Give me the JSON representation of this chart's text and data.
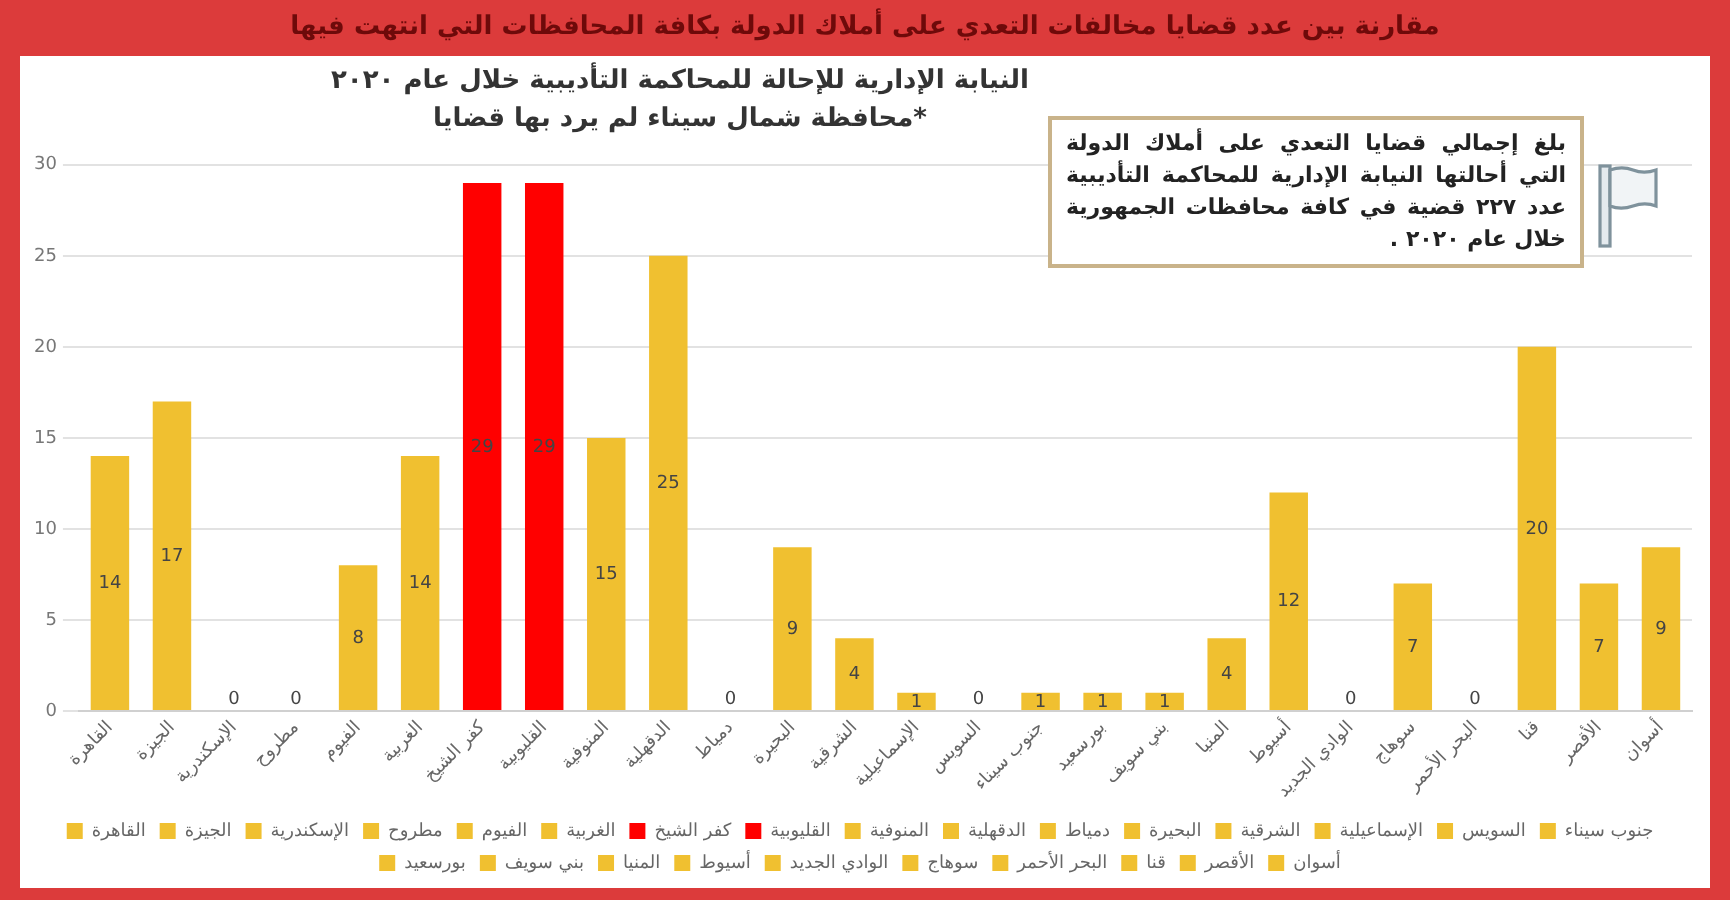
{
  "chart_data": {
    "type": "bar",
    "title": "مقارنة بين عدد قضايا مخالفات التعدي على أملاك الدولة بكافة المحافظات التي انتهت فيها",
    "subtitle": "النيابة الإدارية للإحالة للمحاكمة التأديبية خلال عام ٢٠٢٠",
    "annotations": [
      "*محافظة شمال سيناء لم يرد بها قضايا",
      "بلغ إجمالي قضايا التعدي على أملاك الدولة التي أحالتها النيابة الإدارية للمحاكمة التأديبية عدد ٢٢٧ قضية في كافة محافظات الجمهورية خلال عام ٢٠٢٠ ."
    ],
    "categories": [
      "القاهرة",
      "الجيزة",
      "الإسكندرية",
      "مطروح",
      "الفيوم",
      "الغربية",
      "كفر الشيخ",
      "القليوبية",
      "المنوفية",
      "الدقهلية",
      "دمياط",
      "البحيرة",
      "الشرقية",
      "الإسماعيلية",
      "السويس",
      "جنوب سيناء",
      "بورسعيد",
      "بني سويف",
      "المنيا",
      "أسيوط",
      "الوادي الجديد",
      "سوهاج",
      "البحر الأحمر",
      "قنا",
      "الأقصر",
      "أسوان"
    ],
    "series": [
      {
        "name": "القاهرة",
        "color": "#f0c030",
        "values": [
          14,
          null,
          null,
          null,
          null,
          null,
          null,
          null,
          null,
          null,
          null,
          null,
          null,
          null,
          null,
          null,
          null,
          null,
          null,
          null,
          null,
          null,
          null,
          null,
          null,
          null
        ]
      },
      {
        "name": "الجيزة",
        "color": "#f0c030",
        "values": [
          null,
          17,
          null,
          null,
          null,
          null,
          null,
          null,
          null,
          null,
          null,
          null,
          null,
          null,
          null,
          null,
          null,
          null,
          null,
          null,
          null,
          null,
          null,
          null,
          null,
          null
        ]
      },
      {
        "name": "الإسكندرية",
        "color": "#f0c030",
        "values": [
          null,
          null,
          0,
          null,
          null,
          null,
          null,
          null,
          null,
          null,
          null,
          null,
          null,
          null,
          null,
          null,
          null,
          null,
          null,
          null,
          null,
          null,
          null,
          null,
          null,
          null
        ]
      },
      {
        "name": "مطروح",
        "color": "#f0c030",
        "values": [
          null,
          null,
          null,
          0,
          null,
          null,
          null,
          null,
          null,
          null,
          null,
          null,
          null,
          null,
          null,
          null,
          null,
          null,
          null,
          null,
          null,
          null,
          null,
          null,
          null,
          null
        ]
      },
      {
        "name": "الفيوم",
        "color": "#f0c030",
        "values": [
          null,
          null,
          null,
          null,
          8,
          null,
          null,
          null,
          null,
          null,
          null,
          null,
          null,
          null,
          null,
          null,
          null,
          null,
          null,
          null,
          null,
          null,
          null,
          null,
          null,
          null
        ]
      },
      {
        "name": "الغربية",
        "color": "#f0c030",
        "values": [
          null,
          null,
          null,
          null,
          null,
          14,
          null,
          null,
          null,
          null,
          null,
          null,
          null,
          null,
          null,
          null,
          null,
          null,
          null,
          null,
          null,
          null,
          null,
          null,
          null,
          null
        ]
      },
      {
        "name": "كفر الشيخ",
        "color": "#ff0000",
        "values": [
          null,
          null,
          null,
          null,
          null,
          null,
          29,
          null,
          null,
          null,
          null,
          null,
          null,
          null,
          null,
          null,
          null,
          null,
          null,
          null,
          null,
          null,
          null,
          null,
          null,
          null
        ]
      },
      {
        "name": "القليوبية",
        "color": "#ff0000",
        "values": [
          null,
          null,
          null,
          null,
          null,
          null,
          null,
          29,
          null,
          null,
          null,
          null,
          null,
          null,
          null,
          null,
          null,
          null,
          null,
          null,
          null,
          null,
          null,
          null,
          null,
          null
        ]
      },
      {
        "name": "المنوفية",
        "color": "#f0c030",
        "values": [
          null,
          null,
          null,
          null,
          null,
          null,
          null,
          null,
          15,
          null,
          null,
          null,
          null,
          null,
          null,
          null,
          null,
          null,
          null,
          null,
          null,
          null,
          null,
          null,
          null,
          null
        ]
      },
      {
        "name": "الدقهلية",
        "color": "#f0c030",
        "values": [
          null,
          null,
          null,
          null,
          null,
          null,
          null,
          null,
          null,
          25,
          null,
          null,
          null,
          null,
          null,
          null,
          null,
          null,
          null,
          null,
          null,
          null,
          null,
          null,
          null,
          null
        ]
      },
      {
        "name": "دمياط",
        "color": "#f0c030",
        "values": [
          null,
          null,
          null,
          null,
          null,
          null,
          null,
          null,
          null,
          null,
          0,
          null,
          null,
          null,
          null,
          null,
          null,
          null,
          null,
          null,
          null,
          null,
          null,
          null,
          null,
          null
        ]
      },
      {
        "name": "البحيرة",
        "color": "#f0c030",
        "values": [
          null,
          null,
          null,
          null,
          null,
          null,
          null,
          null,
          null,
          null,
          null,
          9,
          null,
          null,
          null,
          null,
          null,
          null,
          null,
          null,
          null,
          null,
          null,
          null,
          null,
          null
        ]
      },
      {
        "name": "الشرقية",
        "color": "#f0c030",
        "values": [
          null,
          null,
          null,
          null,
          null,
          null,
          null,
          null,
          null,
          null,
          null,
          null,
          4,
          null,
          null,
          null,
          null,
          null,
          null,
          null,
          null,
          null,
          null,
          null,
          null,
          null
        ]
      },
      {
        "name": "الإسماعيلية",
        "color": "#f0c030",
        "values": [
          null,
          null,
          null,
          null,
          null,
          null,
          null,
          null,
          null,
          null,
          null,
          null,
          null,
          1,
          null,
          null,
          null,
          null,
          null,
          null,
          null,
          null,
          null,
          null,
          null,
          null
        ]
      },
      {
        "name": "السويس",
        "color": "#f0c030",
        "values": [
          null,
          null,
          null,
          null,
          null,
          null,
          null,
          null,
          null,
          null,
          null,
          null,
          null,
          null,
          0,
          null,
          null,
          null,
          null,
          null,
          null,
          null,
          null,
          null,
          null,
          null
        ]
      },
      {
        "name": "جنوب سيناء",
        "color": "#f0c030",
        "values": [
          null,
          null,
          null,
          null,
          null,
          null,
          null,
          null,
          null,
          null,
          null,
          null,
          null,
          null,
          null,
          1,
          null,
          null,
          null,
          null,
          null,
          null,
          null,
          null,
          null,
          null
        ]
      },
      {
        "name": "بورسعيد",
        "color": "#f0c030",
        "values": [
          null,
          null,
          null,
          null,
          null,
          null,
          null,
          null,
          null,
          null,
          null,
          null,
          null,
          null,
          null,
          null,
          1,
          null,
          null,
          null,
          null,
          null,
          null,
          null,
          null,
          null
        ]
      },
      {
        "name": "بني سويف",
        "color": "#f0c030",
        "values": [
          null,
          null,
          null,
          null,
          null,
          null,
          null,
          null,
          null,
          null,
          null,
          null,
          null,
          null,
          null,
          null,
          null,
          1,
          null,
          null,
          null,
          null,
          null,
          null,
          null,
          null
        ]
      },
      {
        "name": "المنيا",
        "color": "#f0c030",
        "values": [
          null,
          null,
          null,
          null,
          null,
          null,
          null,
          null,
          null,
          null,
          null,
          null,
          null,
          null,
          null,
          null,
          null,
          null,
          4,
          null,
          null,
          null,
          null,
          null,
          null,
          null
        ]
      },
      {
        "name": "أسيوط",
        "color": "#f0c030",
        "values": [
          null,
          null,
          null,
          null,
          null,
          null,
          null,
          null,
          null,
          null,
          null,
          null,
          null,
          null,
          null,
          null,
          null,
          null,
          null,
          12,
          null,
          null,
          null,
          null,
          null,
          null
        ]
      },
      {
        "name": "الوادي الجديد",
        "color": "#f0c030",
        "values": [
          null,
          null,
          null,
          null,
          null,
          null,
          null,
          null,
          null,
          null,
          null,
          null,
          null,
          null,
          null,
          null,
          null,
          null,
          null,
          null,
          0,
          null,
          null,
          null,
          null,
          null
        ]
      },
      {
        "name": "سوهاج",
        "color": "#f0c030",
        "values": [
          null,
          null,
          null,
          null,
          null,
          null,
          null,
          null,
          null,
          null,
          null,
          null,
          null,
          null,
          null,
          null,
          null,
          null,
          null,
          null,
          null,
          7,
          null,
          null,
          null,
          null
        ]
      },
      {
        "name": "البحر الأحمر",
        "color": "#f0c030",
        "values": [
          null,
          null,
          null,
          null,
          null,
          null,
          null,
          null,
          null,
          null,
          null,
          null,
          null,
          null,
          null,
          null,
          null,
          null,
          null,
          null,
          null,
          null,
          0,
          null,
          null,
          null
        ]
      },
      {
        "name": "قنا",
        "color": "#f0c030",
        "values": [
          null,
          null,
          null,
          null,
          null,
          null,
          null,
          null,
          null,
          null,
          null,
          null,
          null,
          null,
          null,
          null,
          null,
          null,
          null,
          null,
          null,
          null,
          null,
          20,
          null,
          null
        ]
      },
      {
        "name": "الأقصر",
        "color": "#f0c030",
        "values": [
          null,
          null,
          null,
          null,
          null,
          null,
          null,
          null,
          null,
          null,
          null,
          null,
          null,
          null,
          null,
          null,
          null,
          null,
          null,
          null,
          null,
          null,
          null,
          null,
          7,
          null
        ]
      },
      {
        "name": "أسوان",
        "color": "#f0c030",
        "values": [
          null,
          null,
          null,
          null,
          null,
          null,
          null,
          null,
          null,
          null,
          null,
          null,
          null,
          null,
          null,
          null,
          null,
          null,
          null,
          null,
          null,
          null,
          null,
          null,
          null,
          9
        ]
      }
    ],
    "ylim": [
      0,
      30
    ],
    "yticks": [
      0,
      5,
      10,
      15,
      20,
      25,
      30
    ],
    "grid": "y",
    "legend": "bottom",
    "data_labels": true
  }
}
